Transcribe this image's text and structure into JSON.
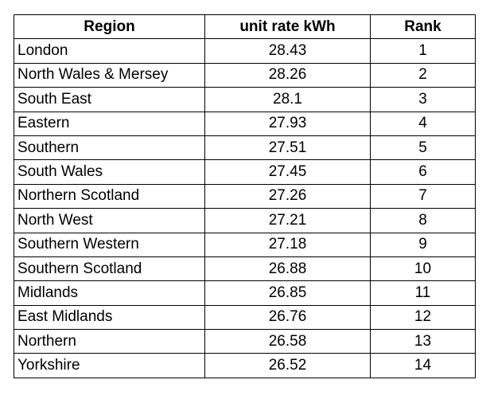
{
  "table": {
    "header": [
      "Region",
      "unit rate kWh",
      "Rank"
    ],
    "rows": [
      [
        "London",
        28.43,
        1
      ],
      [
        "North Wales & Mersey",
        28.26,
        2
      ],
      [
        "South East",
        28.1,
        3
      ],
      [
        "Eastern",
        27.93,
        4
      ],
      [
        "Southern",
        27.51,
        5
      ],
      [
        "South Wales",
        27.45,
        6
      ],
      [
        "Northern Scotland",
        27.26,
        7
      ],
      [
        "North West",
        27.21,
        8
      ],
      [
        "Southern Western",
        27.18,
        9
      ],
      [
        "Southern Scotland",
        26.88,
        10
      ],
      [
        "Midlands",
        26.85,
        11
      ],
      [
        "East Midlands",
        26.76,
        12
      ],
      [
        "Northern",
        26.58,
        13
      ],
      [
        "Yorkshire",
        26.52,
        14
      ]
    ]
  }
}
